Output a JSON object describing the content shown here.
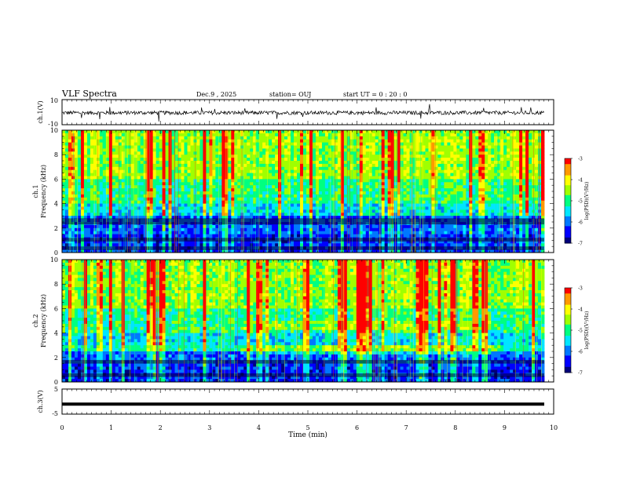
{
  "header": {
    "title": "VLF Spectra",
    "date": "Dec.9 , 2025",
    "station": "station= OUJ",
    "start": "start UT = 0 : 20 : 0"
  },
  "colors": {
    "ink": "#000000",
    "spectrogram_bg": "#0a7a8a",
    "colormap": [
      "#00007a",
      "#0000ff",
      "#0078ff",
      "#00e6ff",
      "#00ff80",
      "#a0ff00",
      "#ffff00",
      "#ff9900",
      "#ff0000",
      "#ffffff"
    ]
  },
  "chart_data": [
    {
      "id": "ch1-waveform",
      "type": "line",
      "ylabel": "ch.1(V)",
      "yticks": [
        "10",
        "-10"
      ],
      "ylim": [
        -10,
        10
      ],
      "xlim": [
        0,
        10
      ],
      "description_values": {
        "baseline": -0.5,
        "noise_amplitude": 1.5
      }
    },
    {
      "id": "ch1-spectrogram",
      "type": "heatmap",
      "ylabel_top": "ch.1",
      "ylabel": "Frequency (kHz)",
      "yticks": [
        "0",
        "2",
        "4",
        "6",
        "8",
        "10"
      ],
      "ylim": [
        0,
        10
      ],
      "xlim": [
        0,
        10
      ],
      "colorbar": {
        "label": "log(PSD)(V²/Hz)",
        "ticks": [
          "-3",
          "-4",
          "-5",
          "-6",
          "-7"
        ],
        "range": [
          -7,
          -3
        ]
      }
    },
    {
      "id": "ch2-spectrogram",
      "type": "heatmap",
      "ylabel_top": "ch.2",
      "ylabel": "Frequency (kHz)",
      "yticks": [
        "0",
        "2",
        "4",
        "6",
        "8",
        "10"
      ],
      "ylim": [
        0,
        10
      ],
      "xlim": [
        0,
        10
      ],
      "colorbar": {
        "label": "log(PSD)(V²/Hz)",
        "ticks": [
          "-3",
          "-4",
          "-5",
          "-6",
          "-7"
        ],
        "range": [
          -7,
          -3
        ]
      }
    },
    {
      "id": "ch3-waveform",
      "type": "line",
      "ylabel": "ch.3(V)",
      "yticks": [
        "5",
        "0",
        "-5"
      ],
      "ylim": [
        -5,
        5
      ],
      "xlim": [
        0,
        10
      ],
      "description_values": {
        "constant_level": -1
      }
    }
  ],
  "xaxis": {
    "label": "Time (min)",
    "ticks": [
      "0",
      "1",
      "2",
      "3",
      "4",
      "5",
      "6",
      "7",
      "8",
      "9",
      "10"
    ],
    "range": [
      0,
      10
    ]
  }
}
